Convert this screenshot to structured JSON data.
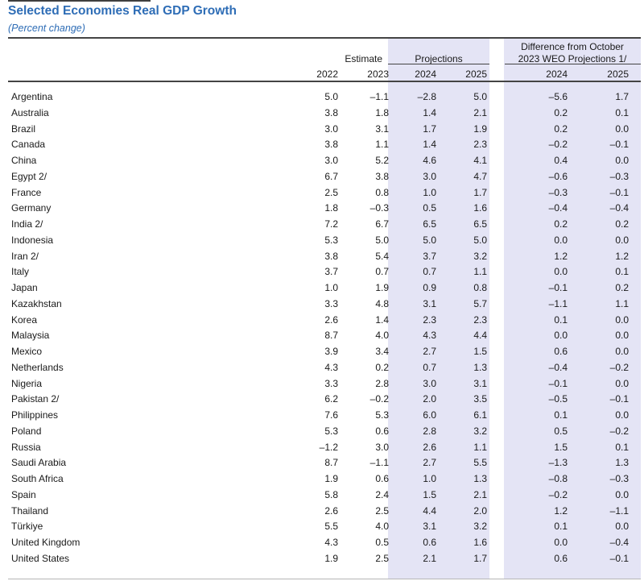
{
  "title": "Selected Economies Real GDP Growth",
  "subtitle": "(Percent change)",
  "colors": {
    "accent_blue": "#2E6DB6",
    "highlight_band": "#E4E4F5",
    "rule_dark": "#444444",
    "rule_light": "#B5B5B5"
  },
  "header": {
    "estimate_label": "Estimate",
    "projections_label": "Projections",
    "difference_label_line1": "Difference from October",
    "difference_label_line2": "2023 WEO Projections 1/",
    "years": [
      "2022",
      "2023",
      "2024",
      "2025",
      "2024",
      "2025"
    ]
  },
  "chart_data": {
    "type": "table",
    "title": "Selected Economies Real GDP Growth",
    "subtitle": "(Percent change)",
    "column_groups": [
      "Estimate",
      "Projections",
      "Difference from October 2023 WEO Projections 1/"
    ],
    "columns": [
      "2022",
      "2023",
      "2024",
      "2025",
      "2024",
      "2025"
    ],
    "rows": [
      {
        "country": "Argentina",
        "values": [
          "5.0",
          "–1.1",
          "–2.8",
          "5.0",
          "–5.6",
          "1.7"
        ]
      },
      {
        "country": "Australia",
        "values": [
          "3.8",
          "1.8",
          "1.4",
          "2.1",
          "0.2",
          "0.1"
        ]
      },
      {
        "country": "Brazil",
        "values": [
          "3.0",
          "3.1",
          "1.7",
          "1.9",
          "0.2",
          "0.0"
        ]
      },
      {
        "country": "Canada",
        "values": [
          "3.8",
          "1.1",
          "1.4",
          "2.3",
          "–0.2",
          "–0.1"
        ]
      },
      {
        "country": "China",
        "values": [
          "3.0",
          "5.2",
          "4.6",
          "4.1",
          "0.4",
          "0.0"
        ]
      },
      {
        "country": "Egypt 2/",
        "values": [
          "6.7",
          "3.8",
          "3.0",
          "4.7",
          "–0.6",
          "–0.3"
        ]
      },
      {
        "country": "France",
        "values": [
          "2.5",
          "0.8",
          "1.0",
          "1.7",
          "–0.3",
          "–0.1"
        ]
      },
      {
        "country": "Germany",
        "values": [
          "1.8",
          "–0.3",
          "0.5",
          "1.6",
          "–0.4",
          "–0.4"
        ]
      },
      {
        "country": "India 2/",
        "values": [
          "7.2",
          "6.7",
          "6.5",
          "6.5",
          "0.2",
          "0.2"
        ]
      },
      {
        "country": "Indonesia",
        "values": [
          "5.3",
          "5.0",
          "5.0",
          "5.0",
          "0.0",
          "0.0"
        ]
      },
      {
        "country": "Iran 2/",
        "values": [
          "3.8",
          "5.4",
          "3.7",
          "3.2",
          "1.2",
          "1.2"
        ]
      },
      {
        "country": "Italy",
        "values": [
          "3.7",
          "0.7",
          "0.7",
          "1.1",
          "0.0",
          "0.1"
        ]
      },
      {
        "country": "Japan",
        "values": [
          "1.0",
          "1.9",
          "0.9",
          "0.8",
          "–0.1",
          "0.2"
        ]
      },
      {
        "country": "Kazakhstan",
        "values": [
          "3.3",
          "4.8",
          "3.1",
          "5.7",
          "–1.1",
          "1.1"
        ]
      },
      {
        "country": "Korea",
        "values": [
          "2.6",
          "1.4",
          "2.3",
          "2.3",
          "0.1",
          "0.0"
        ]
      },
      {
        "country": "Malaysia",
        "values": [
          "8.7",
          "4.0",
          "4.3",
          "4.4",
          "0.0",
          "0.0"
        ]
      },
      {
        "country": "Mexico",
        "values": [
          "3.9",
          "3.4",
          "2.7",
          "1.5",
          "0.6",
          "0.0"
        ]
      },
      {
        "country": "Netherlands",
        "values": [
          "4.3",
          "0.2",
          "0.7",
          "1.3",
          "–0.4",
          "–0.2"
        ]
      },
      {
        "country": "Nigeria",
        "values": [
          "3.3",
          "2.8",
          "3.0",
          "3.1",
          "–0.1",
          "0.0"
        ]
      },
      {
        "country": "Pakistan 2/",
        "values": [
          "6.2",
          "–0.2",
          "2.0",
          "3.5",
          "–0.5",
          "–0.1"
        ]
      },
      {
        "country": "Philippines",
        "values": [
          "7.6",
          "5.3",
          "6.0",
          "6.1",
          "0.1",
          "0.0"
        ]
      },
      {
        "country": "Poland",
        "values": [
          "5.3",
          "0.6",
          "2.8",
          "3.2",
          "0.5",
          "–0.2"
        ]
      },
      {
        "country": "Russia",
        "values": [
          "–1.2",
          "3.0",
          "2.6",
          "1.1",
          "1.5",
          "0.1"
        ]
      },
      {
        "country": "Saudi Arabia",
        "values": [
          "8.7",
          "–1.1",
          "2.7",
          "5.5",
          "–1.3",
          "1.3"
        ]
      },
      {
        "country": "South Africa",
        "values": [
          "1.9",
          "0.6",
          "1.0",
          "1.3",
          "–0.8",
          "–0.3"
        ]
      },
      {
        "country": "Spain",
        "values": [
          "5.8",
          "2.4",
          "1.5",
          "2.1",
          "–0.2",
          "0.0"
        ]
      },
      {
        "country": "Thailand",
        "values": [
          "2.6",
          "2.5",
          "4.4",
          "2.0",
          "1.2",
          "–1.1"
        ]
      },
      {
        "country": "Türkiye",
        "values": [
          "5.5",
          "4.0",
          "3.1",
          "3.2",
          "0.1",
          "0.0"
        ]
      },
      {
        "country": "United Kingdom",
        "values": [
          "4.3",
          "0.5",
          "0.6",
          "1.6",
          "0.0",
          "–0.4"
        ]
      },
      {
        "country": "United States",
        "values": [
          "1.9",
          "2.5",
          "2.1",
          "1.7",
          "0.6",
          "–0.1"
        ]
      }
    ]
  }
}
